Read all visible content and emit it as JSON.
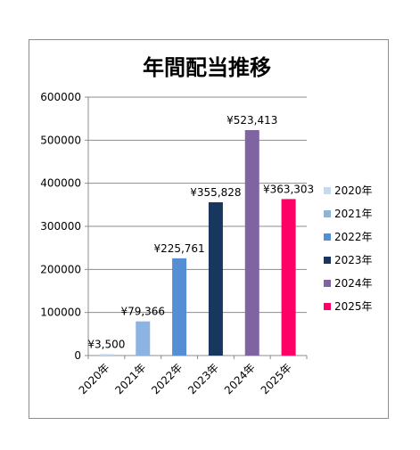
{
  "chart_data": {
    "type": "bar",
    "title": "年間配当推移",
    "xlabel": "",
    "ylabel": "",
    "categories": [
      "2020年",
      "2021年",
      "2022年",
      "2023年",
      "2024年",
      "2025年"
    ],
    "values": [
      3500,
      79366,
      225761,
      355828,
      523413,
      363303
    ],
    "data_labels": [
      "¥3,500",
      "¥79,366",
      "¥225,761",
      "¥355,828",
      "¥523,413",
      "¥363,303"
    ],
    "colors": [
      "#c6d9f0",
      "#8db3e2",
      "#558ed5",
      "#17375e",
      "#8064a2",
      "#ff0066"
    ],
    "ylim": [
      0,
      600000
    ],
    "yticks": [
      0,
      100000,
      200000,
      300000,
      400000,
      500000,
      600000
    ],
    "ytick_labels": [
      "0",
      "100000",
      "200000",
      "300000",
      "400000",
      "500000",
      "600000"
    ],
    "grid": true,
    "legend": {
      "position": "right",
      "entries": [
        "2020年",
        "2021年",
        "2022年",
        "2023年",
        "2024年",
        "2025年"
      ]
    }
  }
}
